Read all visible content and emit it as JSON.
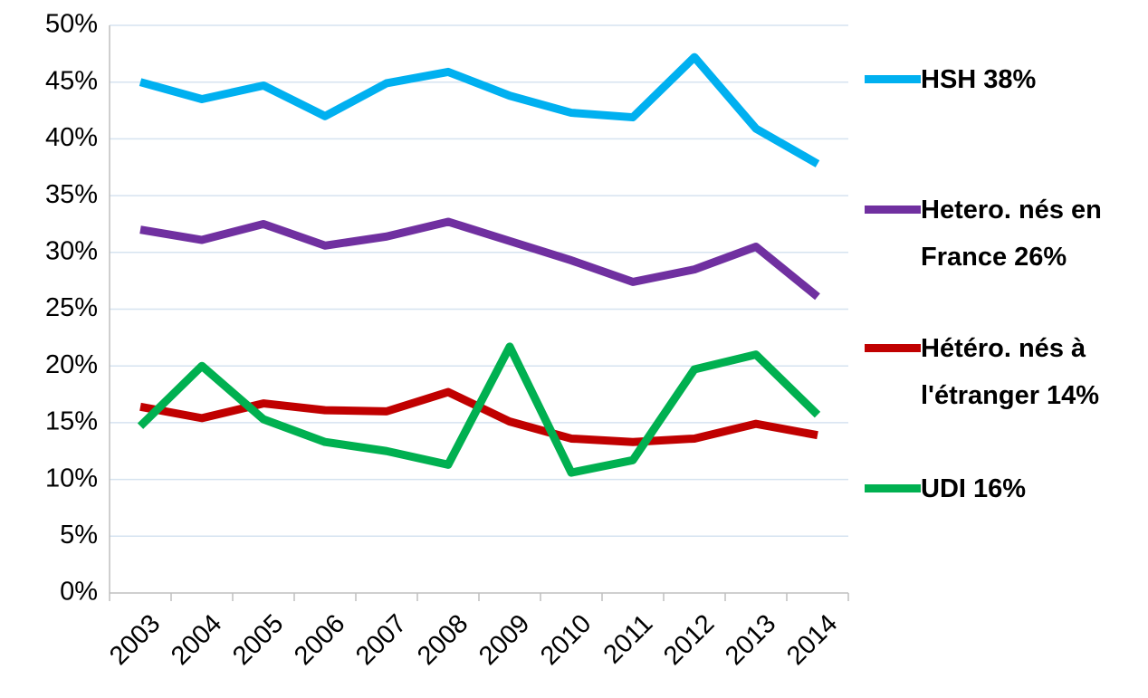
{
  "chart_data": {
    "type": "line",
    "categories": [
      "2003",
      "2004",
      "2005",
      "2006",
      "2007",
      "2008",
      "2009",
      "2010",
      "2011",
      "2012",
      "2013",
      "2014"
    ],
    "series": [
      {
        "name": "HSH 38%",
        "color": "#00b0f0",
        "values": [
          45,
          43.5,
          44.7,
          42,
          44.9,
          45.9,
          43.8,
          42.3,
          41.9,
          47.2,
          40.9,
          37.8
        ]
      },
      {
        "name": "Hetero. nés en France 26%",
        "color": "#7030a0",
        "values": [
          32,
          31.1,
          32.5,
          30.6,
          31.4,
          32.7,
          31,
          29.3,
          27.4,
          28.5,
          30.5,
          26.1
        ]
      },
      {
        "name": "Hétéro. nés à l'étranger 14%",
        "color": "#c00000",
        "values": [
          16.4,
          15.4,
          16.7,
          16.1,
          16,
          17.7,
          15.1,
          13.6,
          13.3,
          13.6,
          14.9,
          13.9
        ]
      },
      {
        "name": "UDI 16%",
        "color": "#00b050",
        "values": [
          14.7,
          20,
          15.3,
          13.3,
          12.5,
          11.3,
          21.7,
          10.6,
          11.7,
          19.7,
          21,
          15.7
        ]
      }
    ],
    "ylim": [
      0,
      50
    ],
    "yticks": [
      {
        "value": 0,
        "label": "0%"
      },
      {
        "value": 5,
        "label": "5%"
      },
      {
        "value": 10,
        "label": "10%"
      },
      {
        "value": 15,
        "label": "15%"
      },
      {
        "value": 20,
        "label": "20%"
      },
      {
        "value": 25,
        "label": "25%"
      },
      {
        "value": 30,
        "label": "30%"
      },
      {
        "value": 35,
        "label": "35%"
      },
      {
        "value": 40,
        "label": "40%"
      },
      {
        "value": 45,
        "label": "45%"
      },
      {
        "value": 50,
        "label": "50%"
      }
    ],
    "grid": true
  }
}
